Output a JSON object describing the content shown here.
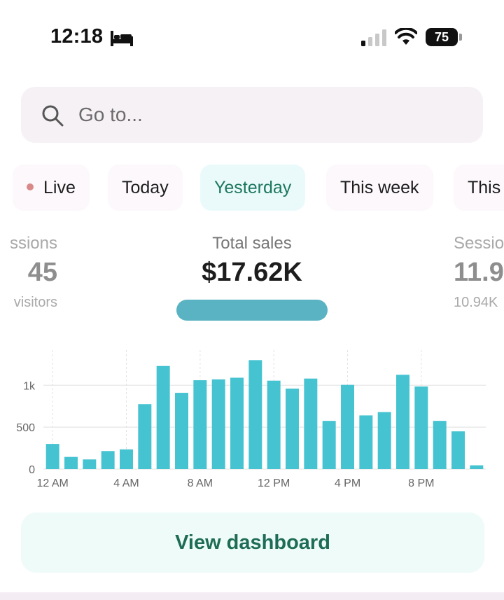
{
  "status_bar": {
    "time": "12:18",
    "battery": "75"
  },
  "search": {
    "placeholder": "Go to..."
  },
  "tabs": [
    {
      "label": "Live"
    },
    {
      "label": "Today"
    },
    {
      "label": "Yesterday",
      "active": true
    },
    {
      "label": "This week"
    },
    {
      "label": "This"
    }
  ],
  "metrics": {
    "left": {
      "label": "ssions",
      "value": "45",
      "sub": "visitors"
    },
    "center": {
      "label": "Total sales",
      "value": "$17.62K"
    },
    "right": {
      "label": "Sessio",
      "value": "11.9",
      "sub": "10.94K"
    }
  },
  "chart_data": {
    "type": "bar",
    "x": [
      0,
      1,
      2,
      3,
      4,
      5,
      6,
      7,
      8,
      9,
      10,
      11,
      12,
      13,
      14,
      15,
      16,
      17,
      18,
      19,
      20,
      21,
      22,
      23
    ],
    "values": [
      300,
      145,
      115,
      215,
      235,
      775,
      1230,
      910,
      1060,
      1070,
      1090,
      1300,
      1055,
      960,
      1080,
      575,
      1005,
      640,
      680,
      1125,
      985,
      575,
      450,
      45
    ],
    "x_tick_labels": [
      "12 AM",
      "4 AM",
      "8 AM",
      "12 PM",
      "4 PM",
      "8 PM"
    ],
    "x_tick_positions": [
      0,
      4,
      8,
      12,
      16,
      20
    ],
    "y_tick_labels": [
      "0",
      "500",
      "1k"
    ],
    "y_tick_values": [
      0,
      500,
      1000
    ],
    "ylim": [
      0,
      1420
    ],
    "color": "#45c3d1",
    "grid": true
  },
  "actions": {
    "view_dashboard": "View dashboard"
  },
  "colors": {
    "bar": "#45c3d1",
    "active_tab_text": "#1e7760",
    "button_text": "#1e6c55",
    "live_dot": "#d98a88"
  }
}
